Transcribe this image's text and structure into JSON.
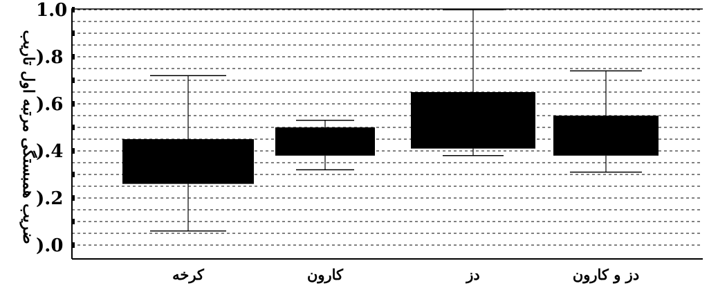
{
  "chart_data": {
    "type": "boxplot",
    "title": "",
    "xlabel": "",
    "ylabel": "ضریب همبستگی مرتبه اول تاریب",
    "ylim": [
      0,
      1
    ],
    "grid": true,
    "categories": [
      "کرخه",
      "کارون",
      "دز",
      "دز و کارون"
    ],
    "yticks": [
      0.0,
      0.2,
      0.4,
      0.6,
      0.8,
      1.0
    ],
    "ytick_labels": [
      ").0",
      ").2",
      ").4",
      ").6",
      ").8",
      "1.0"
    ],
    "boxes": [
      {
        "category": "کرخه",
        "min": 0.06,
        "q1": 0.26,
        "q3": 0.45,
        "max": 0.72
      },
      {
        "category": "کارون",
        "min": 0.32,
        "q1": 0.38,
        "q3": 0.5,
        "max": 0.53
      },
      {
        "category": "دز",
        "min": 0.38,
        "q1": 0.41,
        "q3": 0.65,
        "max": 1.0
      },
      {
        "category": "دز و کارون",
        "min": 0.31,
        "q1": 0.38,
        "q3": 0.55,
        "max": 0.74
      }
    ]
  },
  "colors": {
    "box_fill": "#000000",
    "line": "#000000",
    "grid": "#000000",
    "background": "#ffffff"
  }
}
